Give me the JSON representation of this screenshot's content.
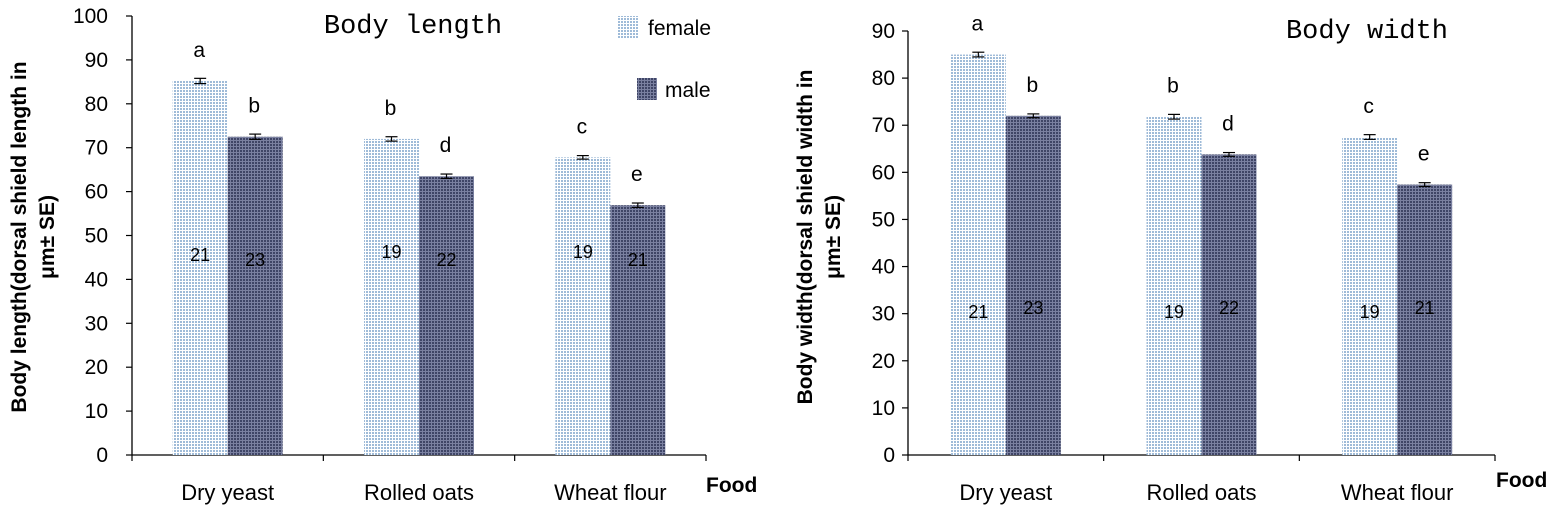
{
  "colors": {
    "female": "#c9d9ea",
    "male": "#555b7a",
    "axis": "#000000"
  },
  "chart_data": [
    {
      "type": "bar",
      "title": "Body length",
      "ylabel": "Body length(dorsal shield length in μm± SE)",
      "ylabel_lines": [
        "Body length(dorsal shield length in",
        "μm± SE)"
      ],
      "xlabel": "Food",
      "categories": [
        "Dry yeast",
        "Rolled oats",
        "Wheat flour"
      ],
      "ylim": [
        0,
        100
      ],
      "yticks": [
        0,
        10,
        20,
        30,
        40,
        50,
        60,
        70,
        80,
        90,
        100
      ],
      "legend": {
        "position": "top-right",
        "entries": [
          "female",
          "male"
        ]
      },
      "series": [
        {
          "name": "female",
          "values": [
            85.2,
            72.0,
            67.8
          ],
          "se": [
            0.6,
            0.5,
            0.4
          ],
          "letters": [
            "a",
            "b",
            "c"
          ],
          "n": [
            "21",
            "19",
            "19"
          ]
        },
        {
          "name": "male",
          "values": [
            72.5,
            63.5,
            56.9
          ],
          "se": [
            0.6,
            0.5,
            0.5
          ],
          "letters": [
            "b",
            "d",
            "e"
          ],
          "n": [
            "23",
            "22",
            "21"
          ]
        }
      ]
    },
    {
      "type": "bar",
      "title": "Body width",
      "ylabel": "Body width(dorsal shield width in μm± SE)",
      "ylabel_lines": [
        "Body width(dorsal shield width in",
        "μm± SE)"
      ],
      "xlabel": "Food",
      "categories": [
        "Dry yeast",
        "Rolled oats",
        "Wheat flour"
      ],
      "ylim": [
        0,
        90
      ],
      "yticks": [
        0,
        10,
        20,
        30,
        40,
        50,
        60,
        70,
        80,
        90
      ],
      "legend": {
        "position": "none",
        "entries": []
      },
      "series": [
        {
          "name": "female",
          "values": [
            85.0,
            71.8,
            67.5
          ],
          "se": [
            0.5,
            0.5,
            0.5
          ],
          "letters": [
            "a",
            "b",
            "c"
          ],
          "n": [
            "21",
            "19",
            "19"
          ]
        },
        {
          "name": "male",
          "values": [
            72.0,
            63.8,
            57.4
          ],
          "se": [
            0.4,
            0.4,
            0.4
          ],
          "letters": [
            "b",
            "d",
            "e"
          ],
          "n": [
            "23",
            "22",
            "21"
          ]
        }
      ]
    }
  ]
}
